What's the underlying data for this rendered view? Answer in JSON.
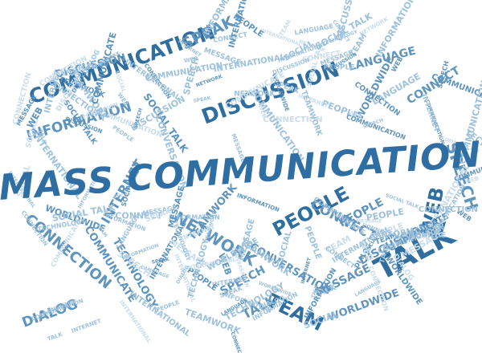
{
  "colors": {
    "background": "#ffffff",
    "dark": "#2f6e9e",
    "mid": "#5e94bd",
    "light": "#9ec2dc",
    "pale": "#c9ddec",
    "title": "#2f6ea3"
  },
  "title": "MASS COMMUNICATION",
  "words": {
    "communication": "COMMUNICATION",
    "discussion": "DISCUSSION",
    "information": "INFORMATION",
    "connection": "CONNECTION",
    "people": "PEOPLE",
    "talk": "TALK",
    "team": "TEAM",
    "speech": "SPEECH",
    "web": "WEB",
    "network": "NETWORK",
    "internet": "INTERNET",
    "international": "INTERNATIONAL",
    "dialog": "DIALOG",
    "message": "MESSAGE",
    "speak": "SPEAK",
    "language": "LANGUAGE",
    "social": "SOCIAL",
    "technology": "TECHNOLOGY",
    "teamwork": "TEAMWORK",
    "conversation": "CONVERSATION",
    "worldwide": "WORLDWIDE",
    "connect": "CONNECT",
    "communicate": "COMMUNICATE",
    "social_talk": "SOCIAL TALK"
  }
}
